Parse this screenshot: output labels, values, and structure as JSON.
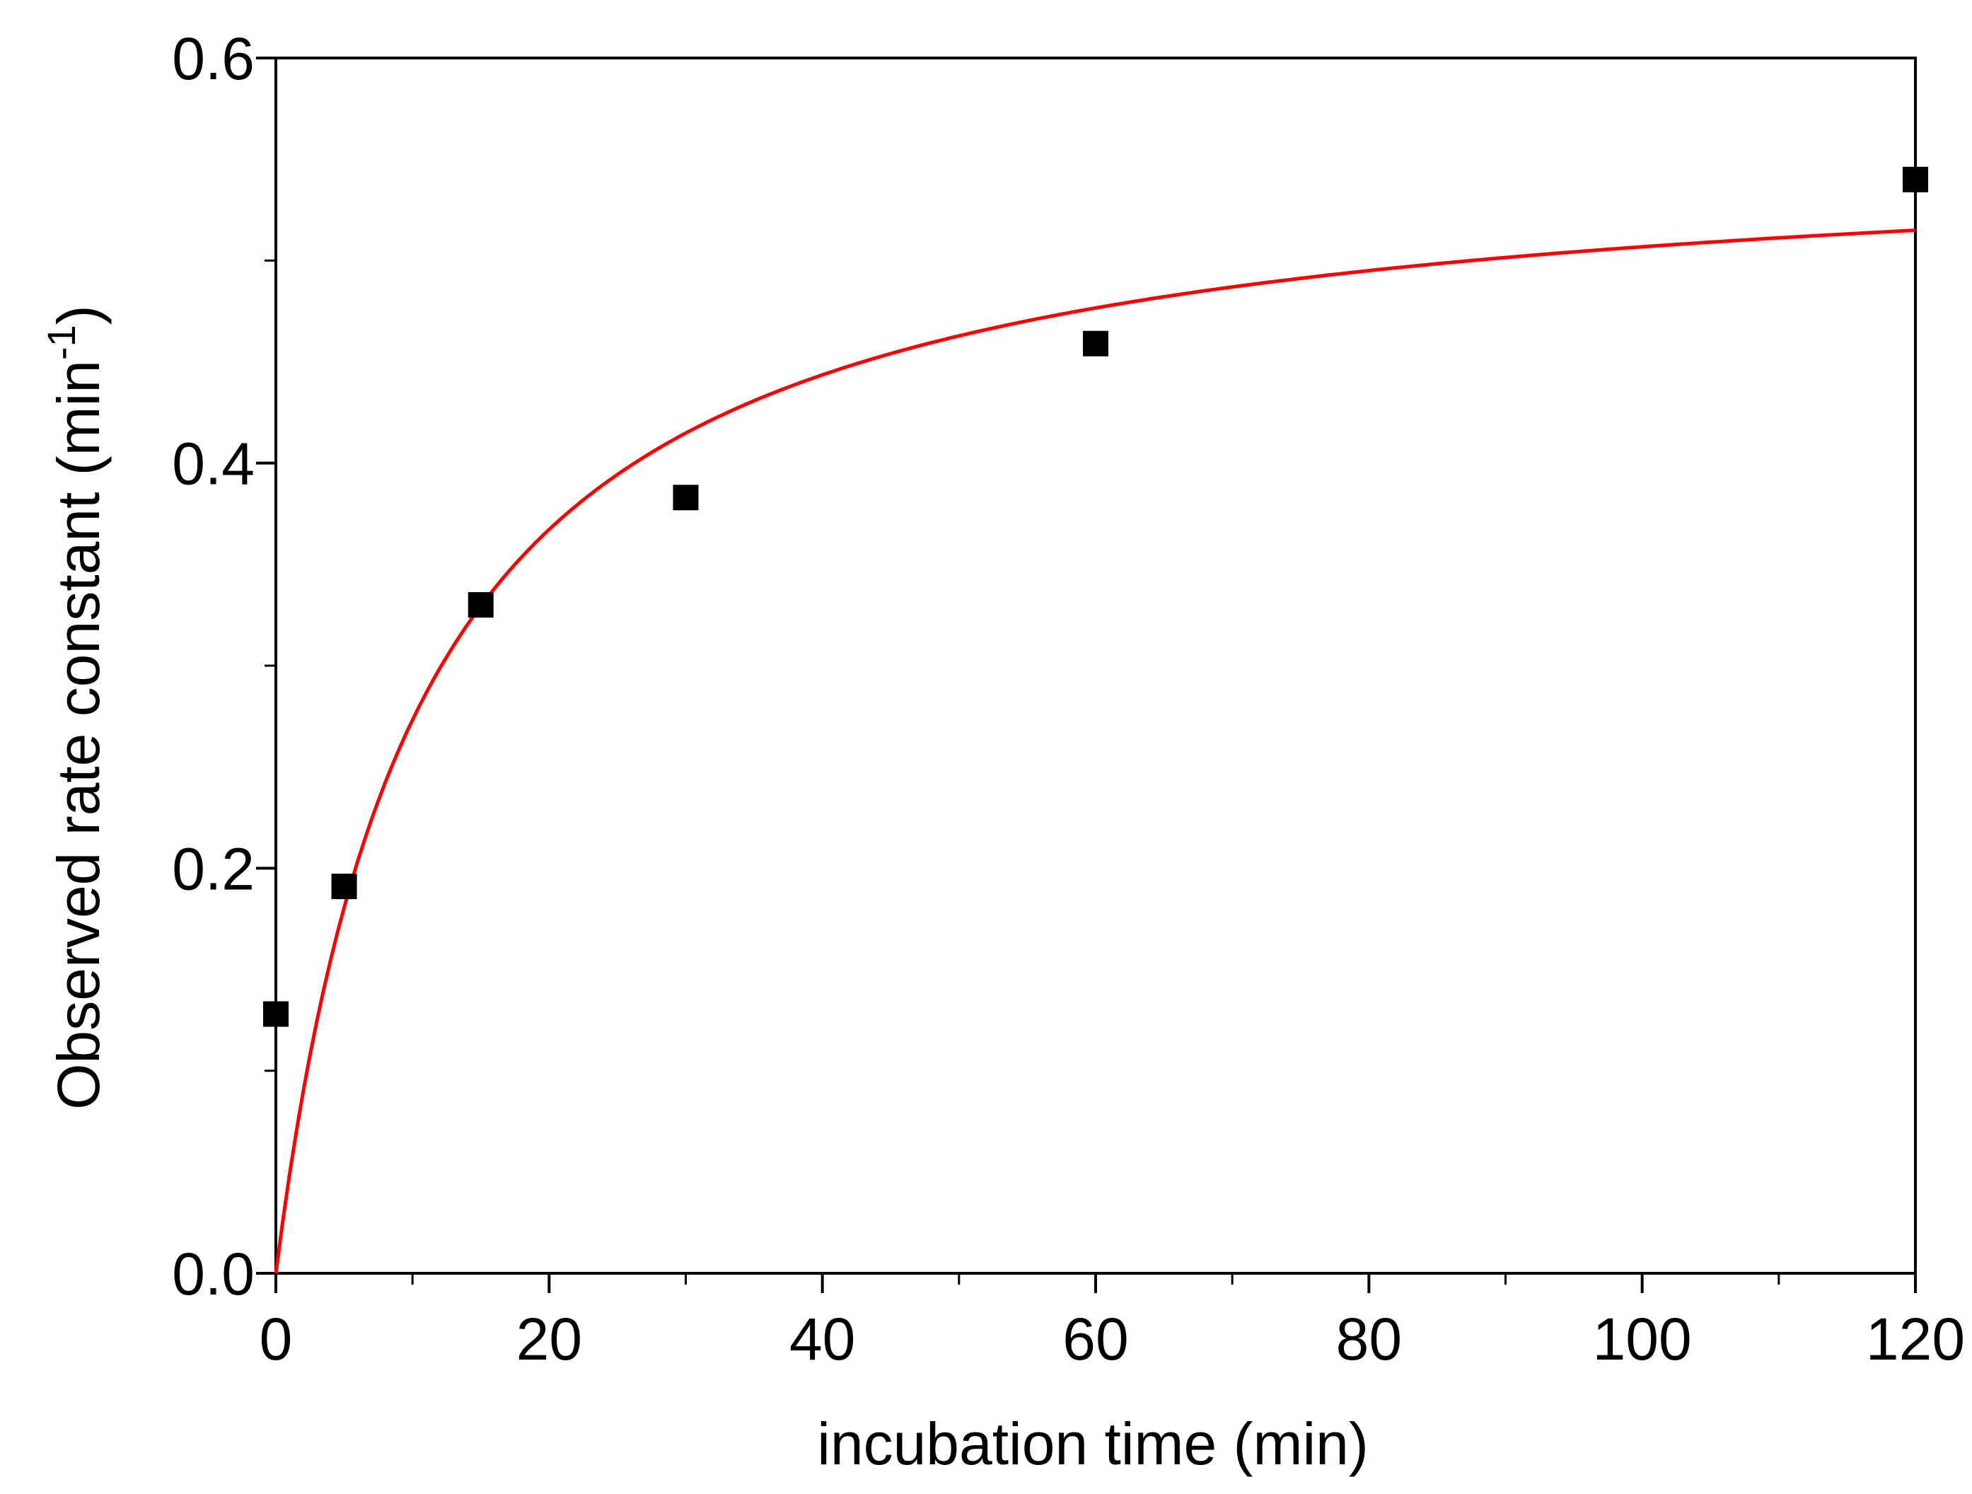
{
  "chart_data": {
    "type": "scatter",
    "xlabel": "incubation time (min)",
    "ylabel": {
      "main": "Observed rate constant (min",
      "superscript": "-1",
      "close": ")"
    },
    "xlim": [
      0,
      120
    ],
    "ylim": [
      0,
      0.6
    ],
    "x_ticks": [
      {
        "value": 0,
        "label": "0"
      },
      {
        "value": 20,
        "label": "20"
      },
      {
        "value": 40,
        "label": "40"
      },
      {
        "value": 60,
        "label": "60"
      },
      {
        "value": 80,
        "label": "80"
      },
      {
        "value": 100,
        "label": "100"
      },
      {
        "value": 120,
        "label": "120"
      }
    ],
    "x_minor_ticks": [
      10,
      30,
      50,
      70,
      90,
      110
    ],
    "y_ticks": [
      {
        "value": 0.0,
        "label": "0.0"
      },
      {
        "value": 0.2,
        "label": "0.2"
      },
      {
        "value": 0.4,
        "label": "0.4"
      },
      {
        "value": 0.6,
        "label": "0.6"
      }
    ],
    "y_minor_ticks": [
      0.1,
      0.3,
      0.5
    ],
    "grid": false,
    "series": [
      {
        "name": "data",
        "kind": "markers",
        "marker": "square",
        "color": "#000000",
        "points": [
          {
            "x": 0,
            "y": 0.128
          },
          {
            "x": 5,
            "y": 0.191
          },
          {
            "x": 15,
            "y": 0.33
          },
          {
            "x": 30,
            "y": 0.383
          },
          {
            "x": 60,
            "y": 0.459
          },
          {
            "x": 120,
            "y": 0.54
          }
        ]
      },
      {
        "name": "fit",
        "kind": "line",
        "color": "#ff0000",
        "model": "y = vmax * x / (k + x)",
        "params": {
          "vmax": 0.56,
          "k": 10.5
        },
        "x_range": [
          0,
          120
        ]
      }
    ]
  }
}
